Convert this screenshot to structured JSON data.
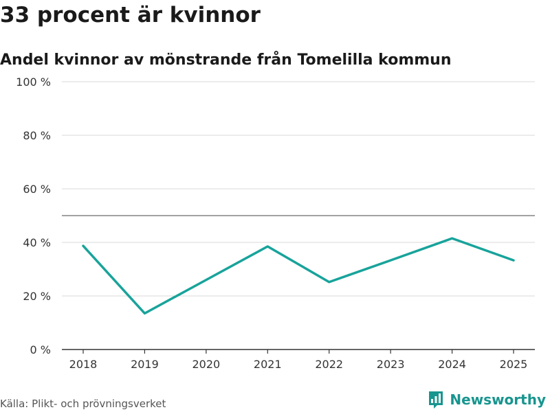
{
  "headline": "33 procent är kvinnor",
  "subtitle": "Andel kvinnor av mönstrande från Tomelilla kommun",
  "source": "Källa: Plikt- och prövningsverket",
  "brand": {
    "name": "Newsworthy",
    "icon": "newsworthy-logo-icon",
    "color": "#18958f"
  },
  "chart_data": {
    "type": "line",
    "title": "",
    "xlabel": "",
    "ylabel": "",
    "categories": [
      "2018",
      "2019",
      "2020",
      "2021",
      "2022",
      "2023",
      "2024",
      "2025"
    ],
    "series": [
      {
        "values": [
          38.7,
          13.5,
          26.0,
          38.5,
          25.2,
          33.3,
          41.5,
          33.3
        ],
        "color": "#18a39b"
      }
    ],
    "ylim": [
      0,
      100
    ],
    "yticks": [
      0,
      20,
      40,
      60,
      80,
      100
    ],
    "ytick_labels": [
      "0 %",
      "20 %",
      "40 %",
      "60 %",
      "80 %",
      "100 %"
    ],
    "reference_line": 50,
    "grid": true,
    "legend": "none"
  }
}
